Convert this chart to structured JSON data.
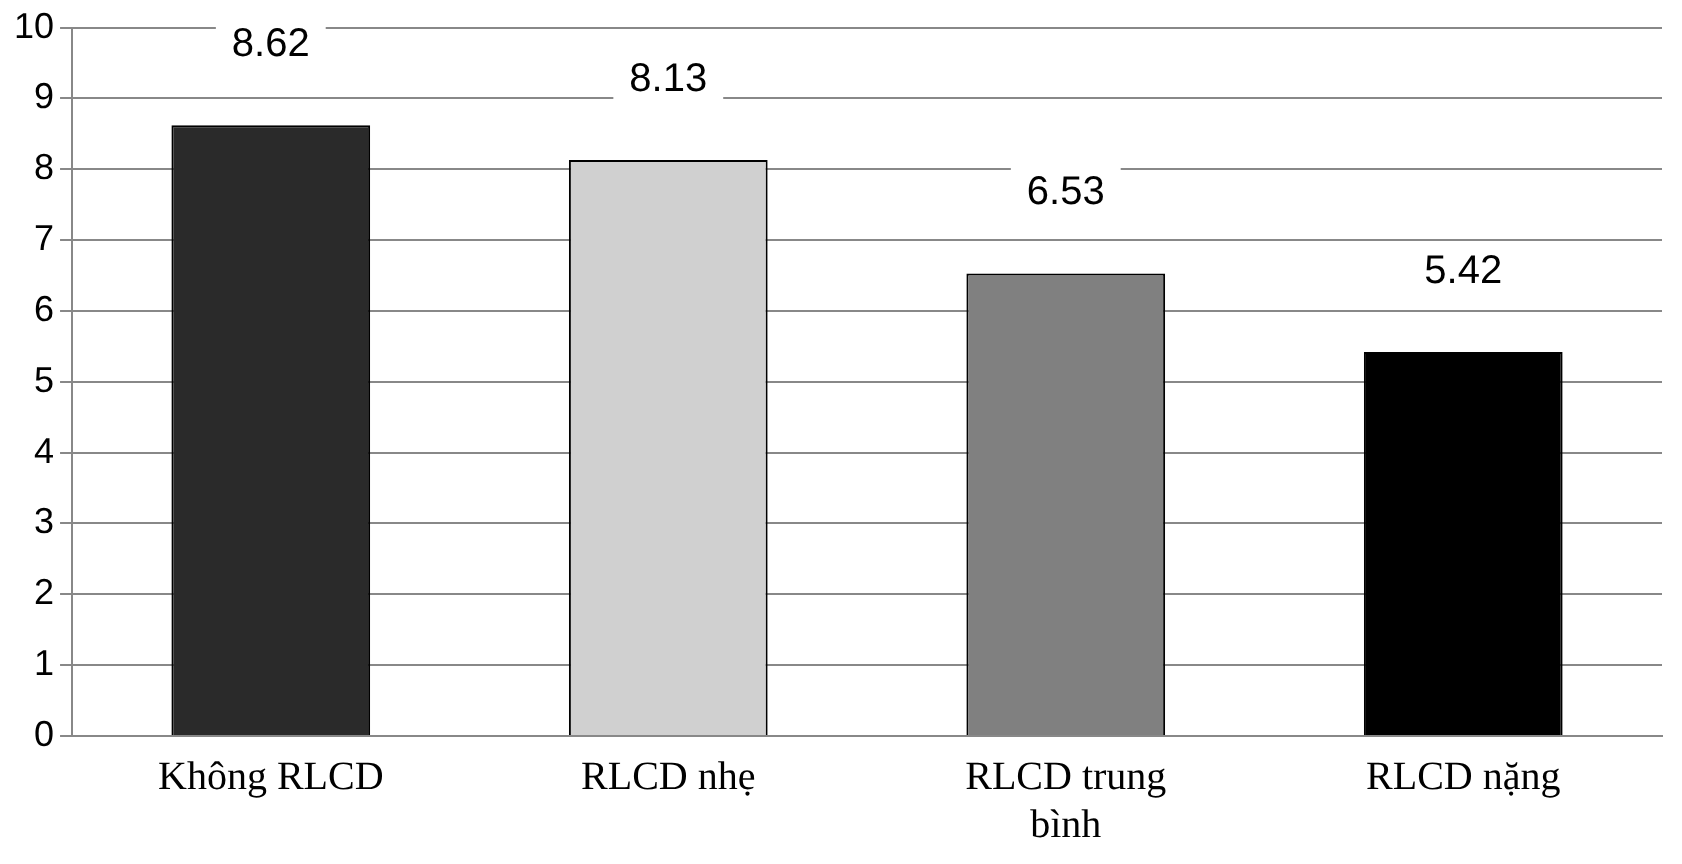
{
  "chart_data": {
    "type": "bar",
    "categories": [
      "Không RLCD",
      "RLCD nhẹ",
      "RLCD trung bình",
      "RLCD nặng"
    ],
    "values": [
      8.62,
      8.13,
      6.53,
      5.42
    ],
    "colors": [
      "#2a2a2a",
      "#d0d0d0",
      "#808080",
      "#000000"
    ],
    "ylim": [
      0,
      10
    ],
    "yticks": [
      0,
      1,
      2,
      3,
      4,
      5,
      6,
      7,
      8,
      9,
      10
    ],
    "grid": "y",
    "data_labels": true,
    "legend": false
  }
}
